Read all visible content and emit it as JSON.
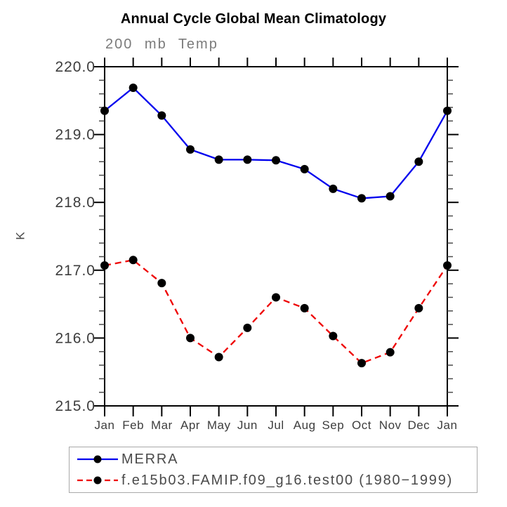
{
  "chart_data": {
    "type": "line",
    "title": "Annual Cycle Global Mean Climatology",
    "subtitle": "200 mb Temp",
    "ylabel": "K",
    "xlabel": "",
    "categories": [
      "Jan",
      "Feb",
      "Mar",
      "Apr",
      "May",
      "Jun",
      "Jul",
      "Aug",
      "Sep",
      "Oct",
      "Nov",
      "Dec",
      "Jan"
    ],
    "series": [
      {
        "name": "MERRA",
        "color": "#0000ee",
        "line_style": "solid",
        "marker": "filled-circle",
        "marker_color": "#000000",
        "values": [
          219.35,
          219.69,
          219.28,
          218.78,
          218.63,
          218.63,
          218.62,
          218.49,
          218.2,
          218.06,
          218.09,
          218.6,
          219.35
        ]
      },
      {
        "name": "f.e15b03.FAMIP.f09_g16.test00 (1980−1999)",
        "color": "#ee0000",
        "line_style": "dashed",
        "marker": "filled-circle",
        "marker_color": "#000000",
        "values": [
          217.07,
          217.15,
          216.81,
          216.0,
          215.72,
          216.15,
          216.6,
          216.44,
          216.03,
          215.63,
          215.79,
          216.44,
          217.07
        ]
      }
    ],
    "ylim": [
      215.0,
      220.0
    ],
    "ytick_labels": [
      "215.0",
      "216.0",
      "217.0",
      "218.0",
      "219.0",
      "220.0"
    ],
    "ytick_interval": 1.0,
    "yminor_interval": 0.2,
    "grid": false,
    "legend_position": "bottom-left",
    "legend_border_color": "#a9a9a9",
    "axis_color": "#000000",
    "tick_label_color": "#3d3d3d"
  }
}
